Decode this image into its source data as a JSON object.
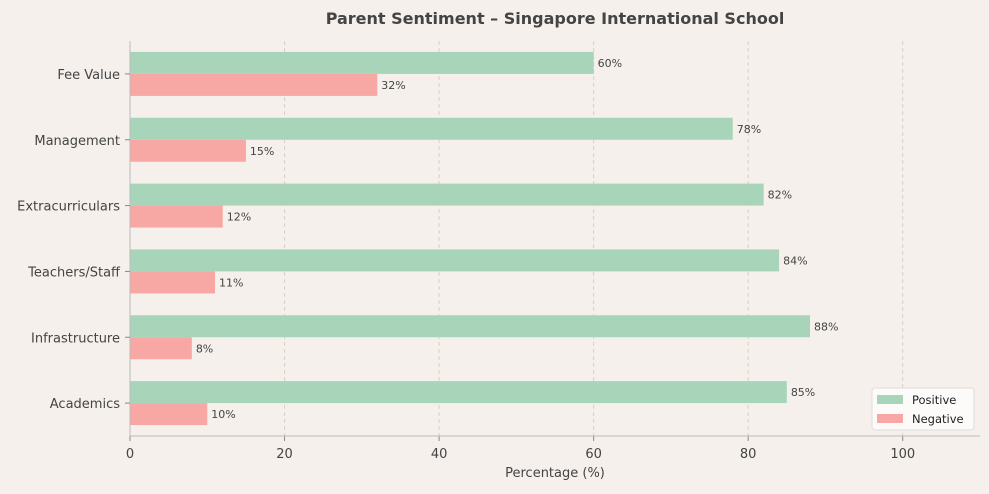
{
  "chart_data": {
    "type": "bar",
    "orientation": "horizontal",
    "title": "Parent Sentiment – Singapore International School",
    "xlabel": "Percentage (%)",
    "ylabel": "",
    "categories": [
      "Fee Value",
      "Management",
      "Extracurriculars",
      "Teachers/Staff",
      "Infrastructure",
      "Academics"
    ],
    "series": [
      {
        "name": "Positive",
        "color": "#a8d5b9",
        "values": [
          60,
          78,
          82,
          84,
          88,
          85
        ]
      },
      {
        "name": "Negative",
        "color": "#f7a8a4",
        "values": [
          32,
          15,
          12,
          11,
          8,
          10
        ]
      }
    ],
    "value_suffix": "%",
    "xlim": [
      0,
      110
    ],
    "xticks": [
      0,
      20,
      40,
      60,
      80,
      100
    ],
    "grid": "vertical dashed",
    "legend": "bottom-right"
  }
}
